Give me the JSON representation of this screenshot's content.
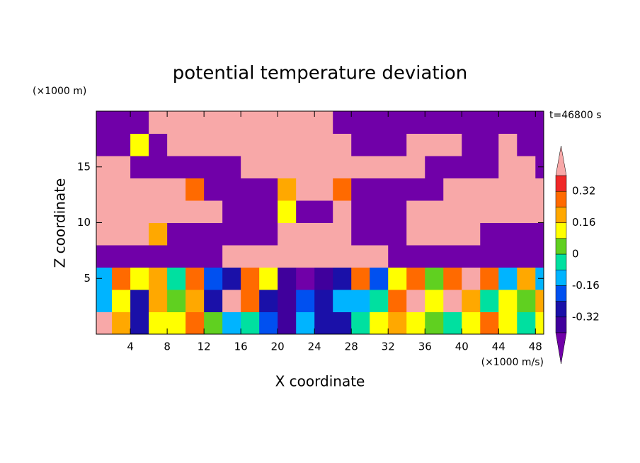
{
  "chart_data": {
    "type": "contourf",
    "title": "potential temperature deviation",
    "x_label": "X coordinate",
    "y_label": "Z coordinate",
    "x_unit_label": "(×1000 m/s)",
    "y_unit_label": "(×1000 m)",
    "time_label": "t=46800 s",
    "xlim": [
      0.3,
      48.9
    ],
    "ylim": [
      0,
      20
    ],
    "xticks": [
      4,
      8,
      12,
      16,
      20,
      24,
      28,
      32,
      36,
      40,
      44,
      48
    ],
    "yticks": [
      5,
      10,
      15
    ],
    "x": [
      1,
      3,
      5,
      7,
      9,
      11,
      13,
      15,
      17,
      19,
      21,
      23,
      25,
      27,
      29,
      31,
      33,
      35,
      37,
      39,
      41,
      43,
      45,
      47,
      49
    ],
    "y": [
      1,
      3,
      5,
      7,
      9,
      11,
      13,
      15,
      17,
      19
    ],
    "z": [
      [
        0.5,
        0.2,
        -0.3,
        0.1,
        0.15,
        0.3,
        0.05,
        -0.1,
        -0.05,
        -0.2,
        -0.35,
        -0.1,
        -0.3,
        -0.25,
        -0.05,
        0.1,
        0.2,
        0.1,
        0.05,
        -0.05,
        0.1,
        0.3,
        0.15,
        -0.05,
        0.1
      ],
      [
        -0.1,
        0.15,
        -0.3,
        0.2,
        0.05,
        0.2,
        -0.3,
        0.45,
        0.3,
        -0.3,
        -0.35,
        -0.2,
        -0.3,
        -0.1,
        -0.15,
        -0.05,
        0.25,
        0.45,
        0.15,
        0.5,
        0.2,
        -0.05,
        0.1,
        0.05,
        0.2
      ],
      [
        -0.12,
        0.3,
        0.1,
        0.2,
        -0.05,
        0.3,
        -0.2,
        -0.3,
        0.3,
        0.1,
        -0.35,
        -0.45,
        -0.35,
        -0.25,
        0.3,
        -0.2,
        0.15,
        0.3,
        0.05,
        0.25,
        0.45,
        0.3,
        -0.1,
        0.2,
        -0.1
      ],
      [
        -0.5,
        -0.5,
        -0.5,
        -0.5,
        -0.5,
        -0.5,
        -0.5,
        0.5,
        0.5,
        0.5,
        0.5,
        0.5,
        0.5,
        0.5,
        0.5,
        0.5,
        -0.5,
        -0.5,
        -0.5,
        -0.5,
        -0.5,
        -0.5,
        -0.5,
        -0.5,
        -0.5
      ],
      [
        0.5,
        0.5,
        0.5,
        0.2,
        -0.5,
        -0.5,
        -0.5,
        -0.5,
        -0.5,
        -0.5,
        0.5,
        0.5,
        0.5,
        0.5,
        -0.5,
        -0.5,
        -0.5,
        0.5,
        0.5,
        0.5,
        0.5,
        -0.5,
        -0.5,
        -0.5,
        -0.5
      ],
      [
        0.5,
        0.5,
        0.5,
        0.5,
        0.5,
        0.5,
        0.5,
        -0.5,
        -0.5,
        -0.5,
        0.1,
        -0.5,
        -0.5,
        0.5,
        -0.5,
        -0.5,
        -0.5,
        0.5,
        0.5,
        0.5,
        0.5,
        0.5,
        0.5,
        0.5,
        0.5
      ],
      [
        0.5,
        0.5,
        0.5,
        0.5,
        0.5,
        0.3,
        -0.5,
        -0.5,
        -0.5,
        -0.5,
        0.2,
        0.5,
        0.5,
        0.3,
        -0.5,
        -0.5,
        -0.5,
        -0.5,
        -0.5,
        0.5,
        0.5,
        0.5,
        0.5,
        0.5,
        0.5
      ],
      [
        0.5,
        0.5,
        -0.5,
        -0.5,
        -0.5,
        -0.5,
        -0.5,
        -0.5,
        0.5,
        0.5,
        0.5,
        0.5,
        0.5,
        0.5,
        0.5,
        0.5,
        0.5,
        0.5,
        -0.5,
        -0.5,
        -0.5,
        -0.5,
        0.5,
        0.5,
        -0.5
      ],
      [
        -0.5,
        -0.5,
        0.1,
        -0.5,
        0.5,
        0.5,
        0.5,
        0.5,
        0.5,
        0.5,
        0.5,
        0.5,
        0.5,
        0.5,
        -0.5,
        -0.5,
        -0.5,
        0.5,
        0.5,
        0.5,
        -0.5,
        -0.5,
        0.5,
        -0.5,
        -0.5
      ],
      [
        -0.5,
        -0.5,
        -0.5,
        0.5,
        0.5,
        0.5,
        0.5,
        0.5,
        0.5,
        0.5,
        0.5,
        0.5,
        0.5,
        -0.5,
        -0.5,
        -0.5,
        -0.5,
        -0.5,
        -0.5,
        -0.5,
        -0.5,
        -0.5,
        -0.5,
        -0.5,
        -0.5
      ]
    ],
    "levels": [
      -0.4,
      -0.32,
      -0.24,
      -0.16,
      -0.08,
      0,
      0.08,
      0.16,
      0.24,
      0.32,
      0.4
    ],
    "colors": [
      "#7000a8",
      "#40009c",
      "#1a10a8",
      "#0050f0",
      "#00b4ff",
      "#00e0a0",
      "#60d020",
      "#ffff00",
      "#ffa800",
      "#ff6a00",
      "#f02828",
      "#f8a8a8"
    ],
    "colorbar_ticks": [
      0.32,
      0.16,
      0,
      -0.16,
      -0.32
    ]
  }
}
